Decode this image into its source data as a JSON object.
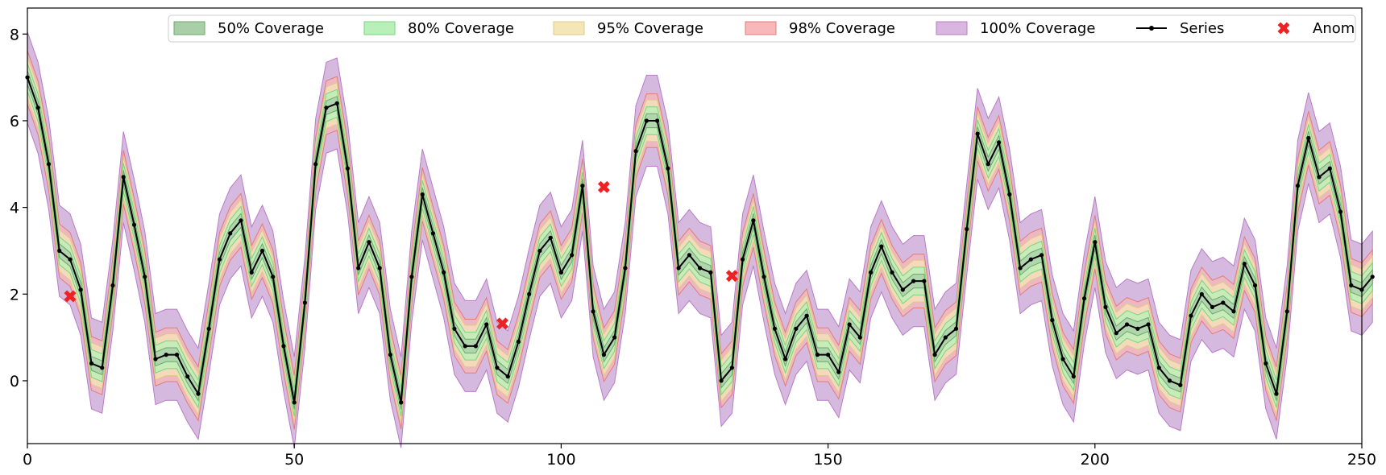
{
  "chart_data": {
    "type": "line",
    "title": "",
    "xlabel": "",
    "ylabel": "",
    "xlim": [
      0,
      250
    ],
    "ylim": [
      -1.45,
      8.6
    ],
    "x_ticks": [
      0,
      50,
      100,
      150,
      200,
      250
    ],
    "y_ticks": [
      0,
      2,
      4,
      6,
      8
    ],
    "grid": false,
    "legend_position": "top-right",
    "series_x_start": 0,
    "series_x_step": 2,
    "series": [
      {
        "name": "Series",
        "color": "#000000",
        "values": [
          7.0,
          6.3,
          5.0,
          3.0,
          2.8,
          2.1,
          0.4,
          0.3,
          2.2,
          4.7,
          3.6,
          2.4,
          0.5,
          0.6,
          0.6,
          0.1,
          -0.3,
          1.2,
          2.8,
          3.4,
          3.7,
          2.5,
          3.0,
          2.4,
          0.8,
          -0.5,
          1.8,
          5.0,
          6.3,
          6.4,
          4.9,
          2.6,
          3.2,
          2.6,
          0.6,
          -0.5,
          2.4,
          4.3,
          3.4,
          2.5,
          1.2,
          0.8,
          0.8,
          1.3,
          0.3,
          0.1,
          0.9,
          2.0,
          3.0,
          3.3,
          2.5,
          2.9,
          4.5,
          1.6,
          0.6,
          1.0,
          2.6,
          5.3,
          6.0,
          6.0,
          4.9,
          2.6,
          2.9,
          2.6,
          2.5,
          0.0,
          0.3,
          2.8,
          3.7,
          2.4,
          1.2,
          0.5,
          1.2,
          1.5,
          0.6,
          0.6,
          0.2,
          1.3,
          1.0,
          2.5,
          3.1,
          2.5,
          2.1,
          2.3,
          2.3,
          0.6,
          1.0,
          1.2,
          3.5,
          5.7,
          5.0,
          5.5,
          4.3,
          2.6,
          2.8,
          2.9,
          1.4,
          0.5,
          0.1,
          1.9,
          3.2,
          1.7,
          1.1,
          1.3,
          1.2,
          1.3,
          0.3,
          0.0,
          -0.1,
          1.5,
          2.0,
          1.7,
          1.8,
          1.6,
          2.7,
          2.2,
          0.4,
          -0.3,
          1.6,
          4.5,
          5.6,
          4.7,
          4.9,
          3.9,
          2.2,
          2.1,
          2.4
        ]
      }
    ],
    "anomalies": [
      {
        "x": 8,
        "y": 1.95
      },
      {
        "x": 89,
        "y": 1.32
      },
      {
        "x": 108,
        "y": 4.47
      },
      {
        "x": 132,
        "y": 2.42
      }
    ],
    "bands": [
      {
        "name": "100% Coverage",
        "half_width": 1.05,
        "color": "#c8a2d4",
        "edge": "#b97cc6"
      },
      {
        "name": "98% Coverage",
        "half_width": 0.62,
        "color": "#f6b8b8",
        "edge": "#e07c7c"
      },
      {
        "name": "95% Coverage",
        "half_width": 0.48,
        "color": "#f5e6b8",
        "edge": "#e0c98a"
      },
      {
        "name": "80% Coverage",
        "half_width": 0.32,
        "color": "#b9f0b9",
        "edge": "#7ad67a"
      },
      {
        "name": "50% Coverage",
        "half_width": 0.16,
        "color": "#a9cfa9",
        "edge": "#6aaa6a"
      }
    ],
    "legend": [
      {
        "label": "50% Coverage",
        "kind": "patch",
        "color": "#a9cfa9",
        "edge": "#6aaa6a"
      },
      {
        "label": "80% Coverage",
        "kind": "patch",
        "color": "#b9f0b9",
        "edge": "#7ad67a"
      },
      {
        "label": "95% Coverage",
        "kind": "patch",
        "color": "#f5e6b8",
        "edge": "#e0c98a"
      },
      {
        "label": "98% Coverage",
        "kind": "patch",
        "color": "#f6b8b8",
        "edge": "#e07c7c"
      },
      {
        "label": "100% Coverage",
        "kind": "patch",
        "color": "#d9b6e0",
        "edge": "#b97cc6"
      },
      {
        "label": "Series",
        "kind": "line",
        "color": "#000000"
      },
      {
        "label": "Anom",
        "kind": "x-marker",
        "color": "#ee2222"
      }
    ]
  }
}
